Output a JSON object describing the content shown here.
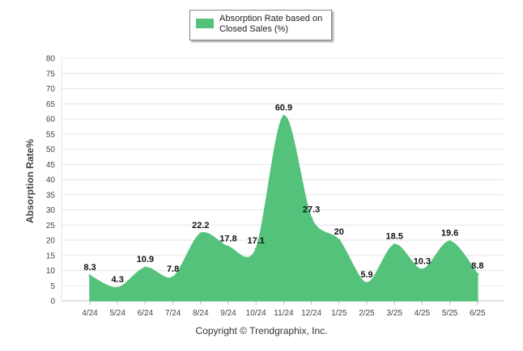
{
  "legend": {
    "label": "Absorption Rate based on Closed Sales (%)"
  },
  "footer": {
    "copyright": "Copyright © Trendgraphix, Inc."
  },
  "chart_data": {
    "type": "area",
    "title": "",
    "xlabel": "",
    "ylabel": "Absorption Rate%",
    "ylim": [
      0,
      80
    ],
    "yticks": [
      0,
      5,
      10,
      15,
      20,
      25,
      30,
      35,
      40,
      45,
      50,
      55,
      60,
      65,
      70,
      75,
      80
    ],
    "grid": true,
    "legend_position": "top-center",
    "categories": [
      "4/24",
      "5/24",
      "6/24",
      "7/24",
      "8/24",
      "9/24",
      "10/24",
      "11/24",
      "12/24",
      "1/25",
      "2/25",
      "3/25",
      "4/25",
      "5/25",
      "6/25"
    ],
    "series": [
      {
        "name": "Absorption Rate based on Closed Sales (%)",
        "values": [
          8.3,
          4.3,
          10.9,
          7.8,
          22.2,
          17.8,
          17.1,
          60.9,
          27.3,
          20,
          5.9,
          18.5,
          10.3,
          19.6,
          8.8
        ],
        "data_labels": [
          "8.3",
          "4.3",
          "10.9",
          "7.8",
          "22.2",
          "17.8",
          "17.1",
          "60.9",
          "27.3",
          "20",
          "5.9",
          "18.5",
          "10.3",
          "19.6",
          "8.8"
        ]
      }
    ],
    "colors": {
      "area": "#55c27c",
      "grid": "#e6e6e6",
      "axis": "#bfbfbf",
      "tick_text": "#444444"
    }
  }
}
